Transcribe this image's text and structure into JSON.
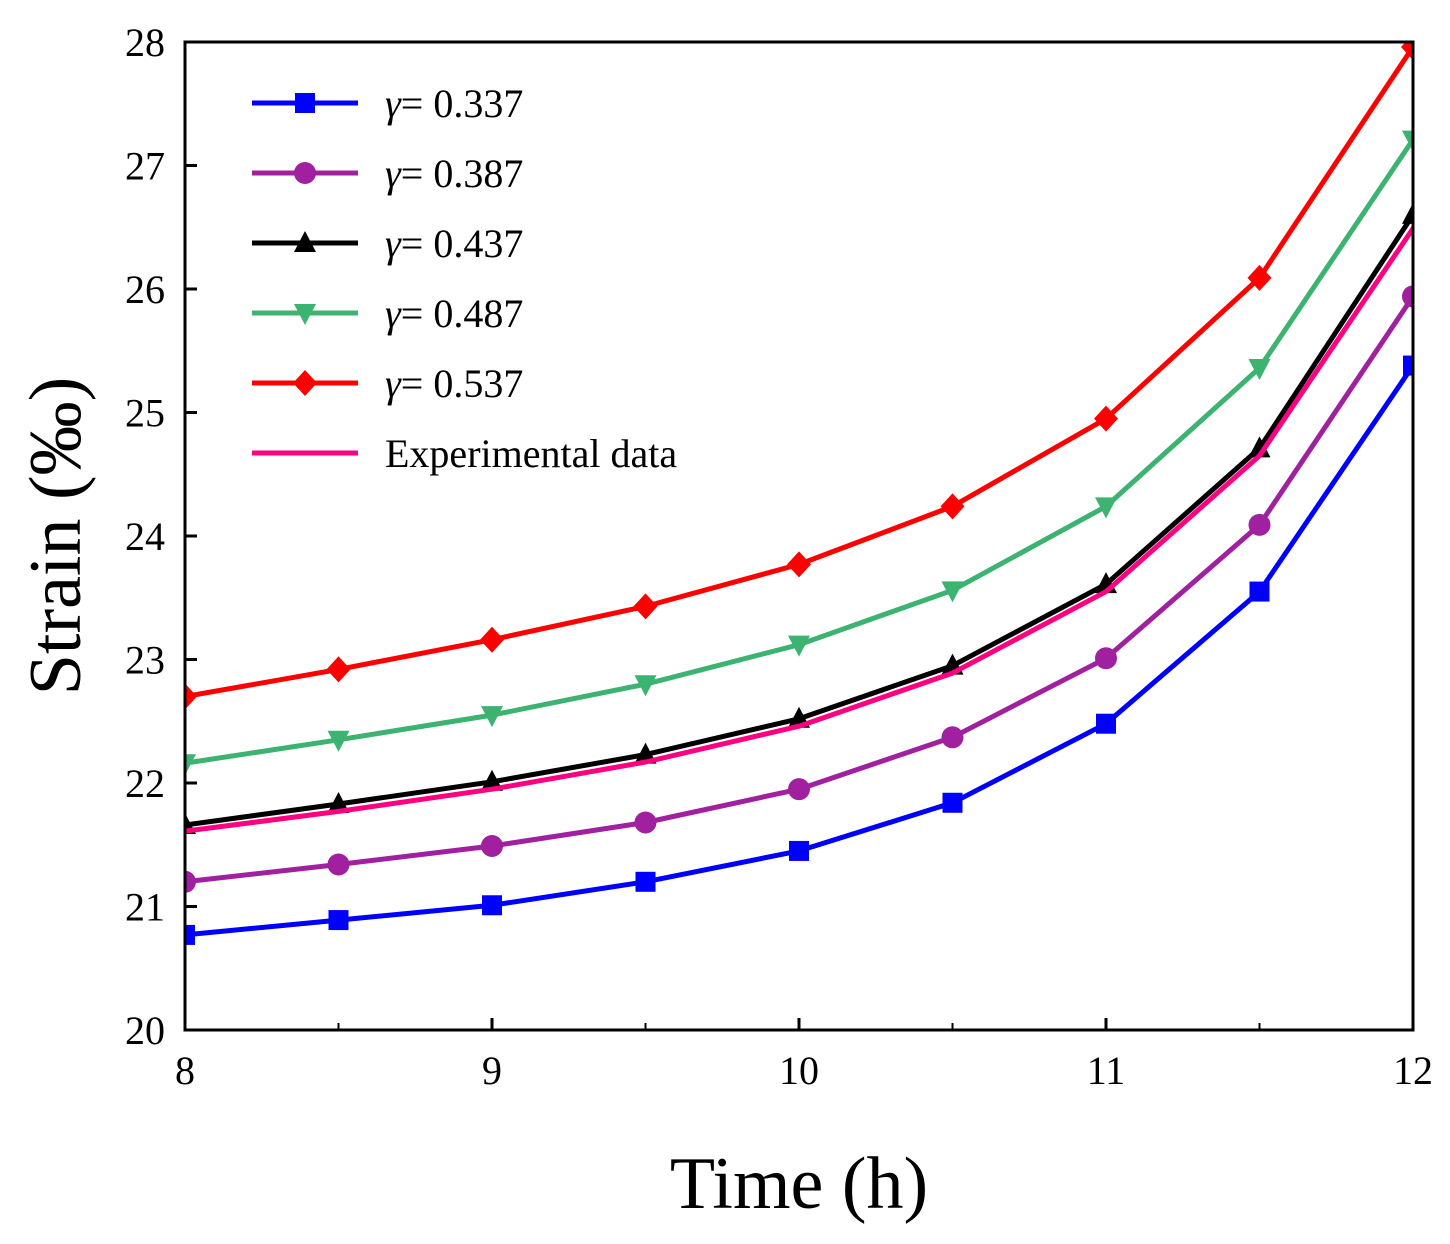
{
  "chart_data": {
    "type": "line",
    "title": "",
    "xlabel": "Time (h)",
    "ylabel": "Strain (‰)",
    "xlim": [
      8,
      12
    ],
    "ylim": [
      20,
      28
    ],
    "xticks": [
      8,
      9,
      10,
      11,
      12
    ],
    "yticks": [
      20,
      21,
      22,
      23,
      24,
      25,
      26,
      27,
      28
    ],
    "grid": false,
    "legend_position": "top-left",
    "x": [
      8,
      8.5,
      9,
      9.5,
      10,
      10.5,
      11,
      11.5,
      12
    ],
    "series": [
      {
        "name": "γ = 0.337",
        "gamma_symbol": "γ",
        "gamma_value": "= 0.337",
        "color": "#0000ff",
        "marker": "square",
        "values": [
          20.77,
          20.89,
          21.01,
          21.2,
          21.45,
          21.84,
          22.48,
          23.55,
          25.38
        ]
      },
      {
        "name": "γ = 0.387",
        "gamma_symbol": "γ",
        "gamma_value": "= 0.387",
        "color": "#a020a0",
        "marker": "circle",
        "values": [
          21.2,
          21.34,
          21.49,
          21.68,
          21.95,
          22.37,
          23.01,
          24.09,
          25.94
        ]
      },
      {
        "name": "γ = 0.437",
        "gamma_symbol": "γ",
        "gamma_value": "= 0.437",
        "color": "#000000",
        "marker": "triangle-up",
        "values": [
          21.66,
          21.83,
          22.01,
          22.23,
          22.52,
          22.95,
          23.61,
          24.71,
          26.6
        ]
      },
      {
        "name": "γ = 0.487",
        "gamma_symbol": "γ",
        "gamma_value": "= 0.487",
        "color": "#3cb371",
        "marker": "triangle-down",
        "values": [
          22.16,
          22.35,
          22.55,
          22.8,
          23.12,
          23.56,
          24.24,
          25.36,
          27.21
        ]
      },
      {
        "name": "γ = 0.537",
        "gamma_symbol": "γ",
        "gamma_value": "= 0.537",
        "color": "#ff0000",
        "marker": "diamond",
        "values": [
          22.7,
          22.92,
          23.16,
          23.43,
          23.77,
          24.24,
          24.95,
          26.09,
          27.96
        ]
      },
      {
        "name": "Experimental data",
        "color": "#ff0080",
        "marker": "none",
        "values": [
          21.61,
          21.77,
          21.95,
          22.17,
          22.46,
          22.89,
          23.55,
          24.65,
          26.49
        ]
      }
    ]
  }
}
